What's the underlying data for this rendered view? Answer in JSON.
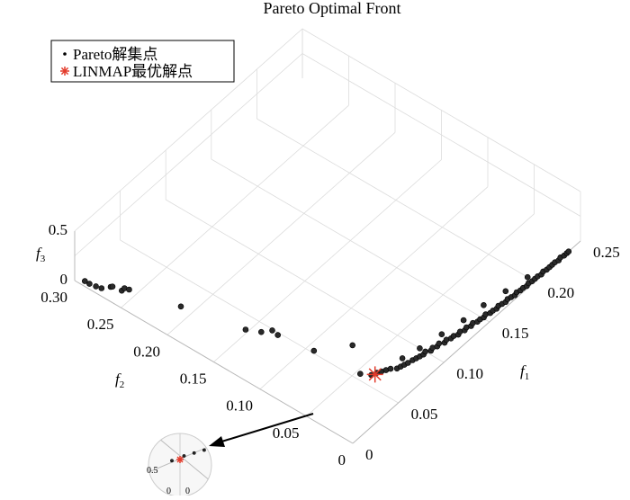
{
  "chart_data": {
    "type": "scatter",
    "title": "Pareto Optimal Front",
    "xlabel": "f",
    "xlabel_sub": "1",
    "ylabel": "f",
    "ylabel_sub": "2",
    "zlabel": "f",
    "zlabel_sub": "3",
    "xlim": [
      0,
      0.25
    ],
    "ylim": [
      0,
      0.3
    ],
    "zlim": [
      0,
      0.5
    ],
    "x_ticks": [
      "0",
      "0.05",
      "0.10",
      "0.15",
      "0.20",
      "0.25"
    ],
    "y_ticks": [
      "0",
      "0.05",
      "0.10",
      "0.15",
      "0.20",
      "0.25",
      "0.30"
    ],
    "z_ticks": [
      "0",
      "0.5"
    ],
    "grid": true,
    "legend_position": "top-left",
    "legend": [
      {
        "marker": "·",
        "label": "Pareto解集点"
      },
      {
        "marker": "*",
        "label": "LINMAP最优解点"
      }
    ],
    "series": [
      {
        "name": "Pareto解集点",
        "color": "#000000",
        "points": [
          [
            0.004,
            0.293,
            0
          ],
          [
            0.004,
            0.288,
            0
          ],
          [
            0.005,
            0.282,
            0
          ],
          [
            0.006,
            0.277,
            0
          ],
          [
            0.011,
            0.272,
            0
          ],
          [
            0.012,
            0.271,
            0
          ],
          [
            0.013,
            0.262,
            0
          ],
          [
            0.016,
            0.262,
            0
          ],
          [
            0.017,
            0.258,
            0
          ],
          [
            0.027,
            0.212,
            0
          ],
          [
            0.038,
            0.153,
            0
          ],
          [
            0.043,
            0.141,
            0
          ],
          [
            0.049,
            0.135,
            0
          ],
          [
            0.048,
            0.128,
            0
          ],
          [
            0.052,
            0.093,
            0
          ],
          [
            0.073,
            0.072,
            0
          ],
          [
            0.055,
            0.046,
            0
          ],
          [
            0.059,
            0.038,
            0
          ],
          [
            0.063,
            0.036,
            0
          ],
          [
            0.066,
            0.034,
            0
          ],
          [
            0.069,
            0.032,
            0
          ],
          [
            0.072,
            0.03,
            0
          ],
          [
            0.075,
            0.026,
            0
          ],
          [
            0.078,
            0.025,
            0
          ],
          [
            0.081,
            0.024,
            0
          ],
          [
            0.084,
            0.023,
            0
          ],
          [
            0.088,
            0.022,
            0
          ],
          [
            0.091,
            0.021,
            0
          ],
          [
            0.094,
            0.02,
            0
          ],
          [
            0.097,
            0.019,
            0
          ],
          [
            0.1,
            0.02,
            0
          ],
          [
            0.103,
            0.017,
            0
          ],
          [
            0.106,
            0.018,
            0
          ],
          [
            0.109,
            0.016,
            0
          ],
          [
            0.112,
            0.017,
            0
          ],
          [
            0.115,
            0.014,
            0
          ],
          [
            0.118,
            0.015,
            0
          ],
          [
            0.121,
            0.013,
            0
          ],
          [
            0.124,
            0.013,
            0
          ],
          [
            0.127,
            0.011,
            0
          ],
          [
            0.13,
            0.012,
            0
          ],
          [
            0.133,
            0.01,
            0
          ],
          [
            0.136,
            0.011,
            0
          ],
          [
            0.139,
            0.009,
            0
          ],
          [
            0.142,
            0.01,
            0
          ],
          [
            0.145,
            0.008,
            0
          ],
          [
            0.148,
            0.008,
            0
          ],
          [
            0.151,
            0.007,
            0
          ],
          [
            0.154,
            0.008,
            0
          ],
          [
            0.157,
            0.006,
            0
          ],
          [
            0.16,
            0.006,
            0
          ],
          [
            0.163,
            0.005,
            0
          ],
          [
            0.166,
            0.006,
            0
          ],
          [
            0.169,
            0.005,
            0
          ],
          [
            0.172,
            0.004,
            0
          ],
          [
            0.175,
            0.005,
            0
          ],
          [
            0.178,
            0.004,
            0
          ],
          [
            0.181,
            0.003,
            0
          ],
          [
            0.184,
            0.004,
            0
          ],
          [
            0.187,
            0.003,
            0
          ],
          [
            0.19,
            0.003,
            0
          ],
          [
            0.193,
            0.002,
            0
          ],
          [
            0.196,
            0.003,
            0
          ],
          [
            0.199,
            0.002,
            0
          ],
          [
            0.202,
            0.002,
            0
          ],
          [
            0.205,
            0.002,
            0
          ],
          [
            0.208,
            0.001,
            0
          ],
          [
            0.211,
            0.002,
            0
          ],
          [
            0.214,
            0.001,
            0
          ],
          [
            0.217,
            0.001,
            0
          ],
          [
            0.22,
            0.001,
            0
          ],
          [
            0.223,
            0.001,
            0
          ],
          [
            0.226,
            0.0,
            0
          ],
          [
            0.229,
            0.001,
            0
          ],
          [
            0.232,
            0.0,
            0
          ],
          [
            0.235,
            0.0,
            0
          ],
          [
            0.237,
            0.0,
            0
          ],
          [
            0.2,
            0.008,
            0
          ],
          [
            0.18,
            0.012,
            0
          ],
          [
            0.16,
            0.016,
            0
          ],
          [
            0.14,
            0.018,
            0
          ],
          [
            0.12,
            0.022,
            0
          ],
          [
            0.1,
            0.026,
            0
          ],
          [
            0.085,
            0.03,
            0
          ]
        ]
      },
      {
        "name": "LINMAP最优解点",
        "color": "#e33a2a",
        "points": [
          [
            0.061,
            0.036,
            0
          ]
        ]
      }
    ]
  }
}
